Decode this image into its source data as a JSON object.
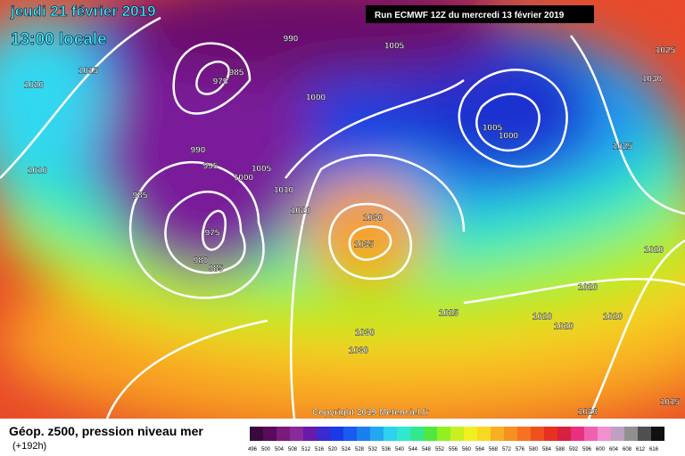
{
  "header": {
    "date": "jeudi 21 février 2019",
    "time": "13:00 locale",
    "run": "Run ECMWF 12Z du mercredi 13 février 2019"
  },
  "map": {
    "copyright": "Copyright 2019 Meteociel.fr",
    "isobar_labels": [
      990,
      1005,
      1015,
      1020,
      975,
      985,
      1000,
      1005,
      1000,
      990,
      995,
      1005,
      1000,
      1010,
      1025,
      1030,
      1025,
      1010,
      985,
      1020,
      1030,
      1035,
      975,
      980,
      985,
      1020,
      1020,
      1025,
      1020,
      1020,
      1020,
      1030,
      1030,
      1020,
      1015
    ]
  },
  "legend": {
    "title": "Géop. z500, pression niveau mer",
    "subtitle": "(+192h)",
    "scale": [
      496,
      500,
      504,
      508,
      512,
      516,
      520,
      524,
      528,
      532,
      536,
      540,
      544,
      548,
      552,
      556,
      560,
      564,
      568,
      572,
      576,
      580,
      584,
      588,
      592,
      596,
      600,
      604,
      608,
      612,
      616
    ],
    "colors": [
      "#3a0a3a",
      "#5a0a5a",
      "#7a1a7a",
      "#8a2a9a",
      "#6a1aaa",
      "#3a2ad0",
      "#1a3ae8",
      "#1a5af0",
      "#1a80f0",
      "#20a8f0",
      "#30d0f0",
      "#30e8d0",
      "#30e890",
      "#50e840",
      "#90f020",
      "#c8f020",
      "#f0f020",
      "#f8d820",
      "#f8b020",
      "#f89020",
      "#f87020",
      "#f05020",
      "#e83020",
      "#d82040",
      "#e83080",
      "#f060b0",
      "#f090d0",
      "#c0a0c0",
      "#909090",
      "#505050",
      "#101010"
    ]
  }
}
